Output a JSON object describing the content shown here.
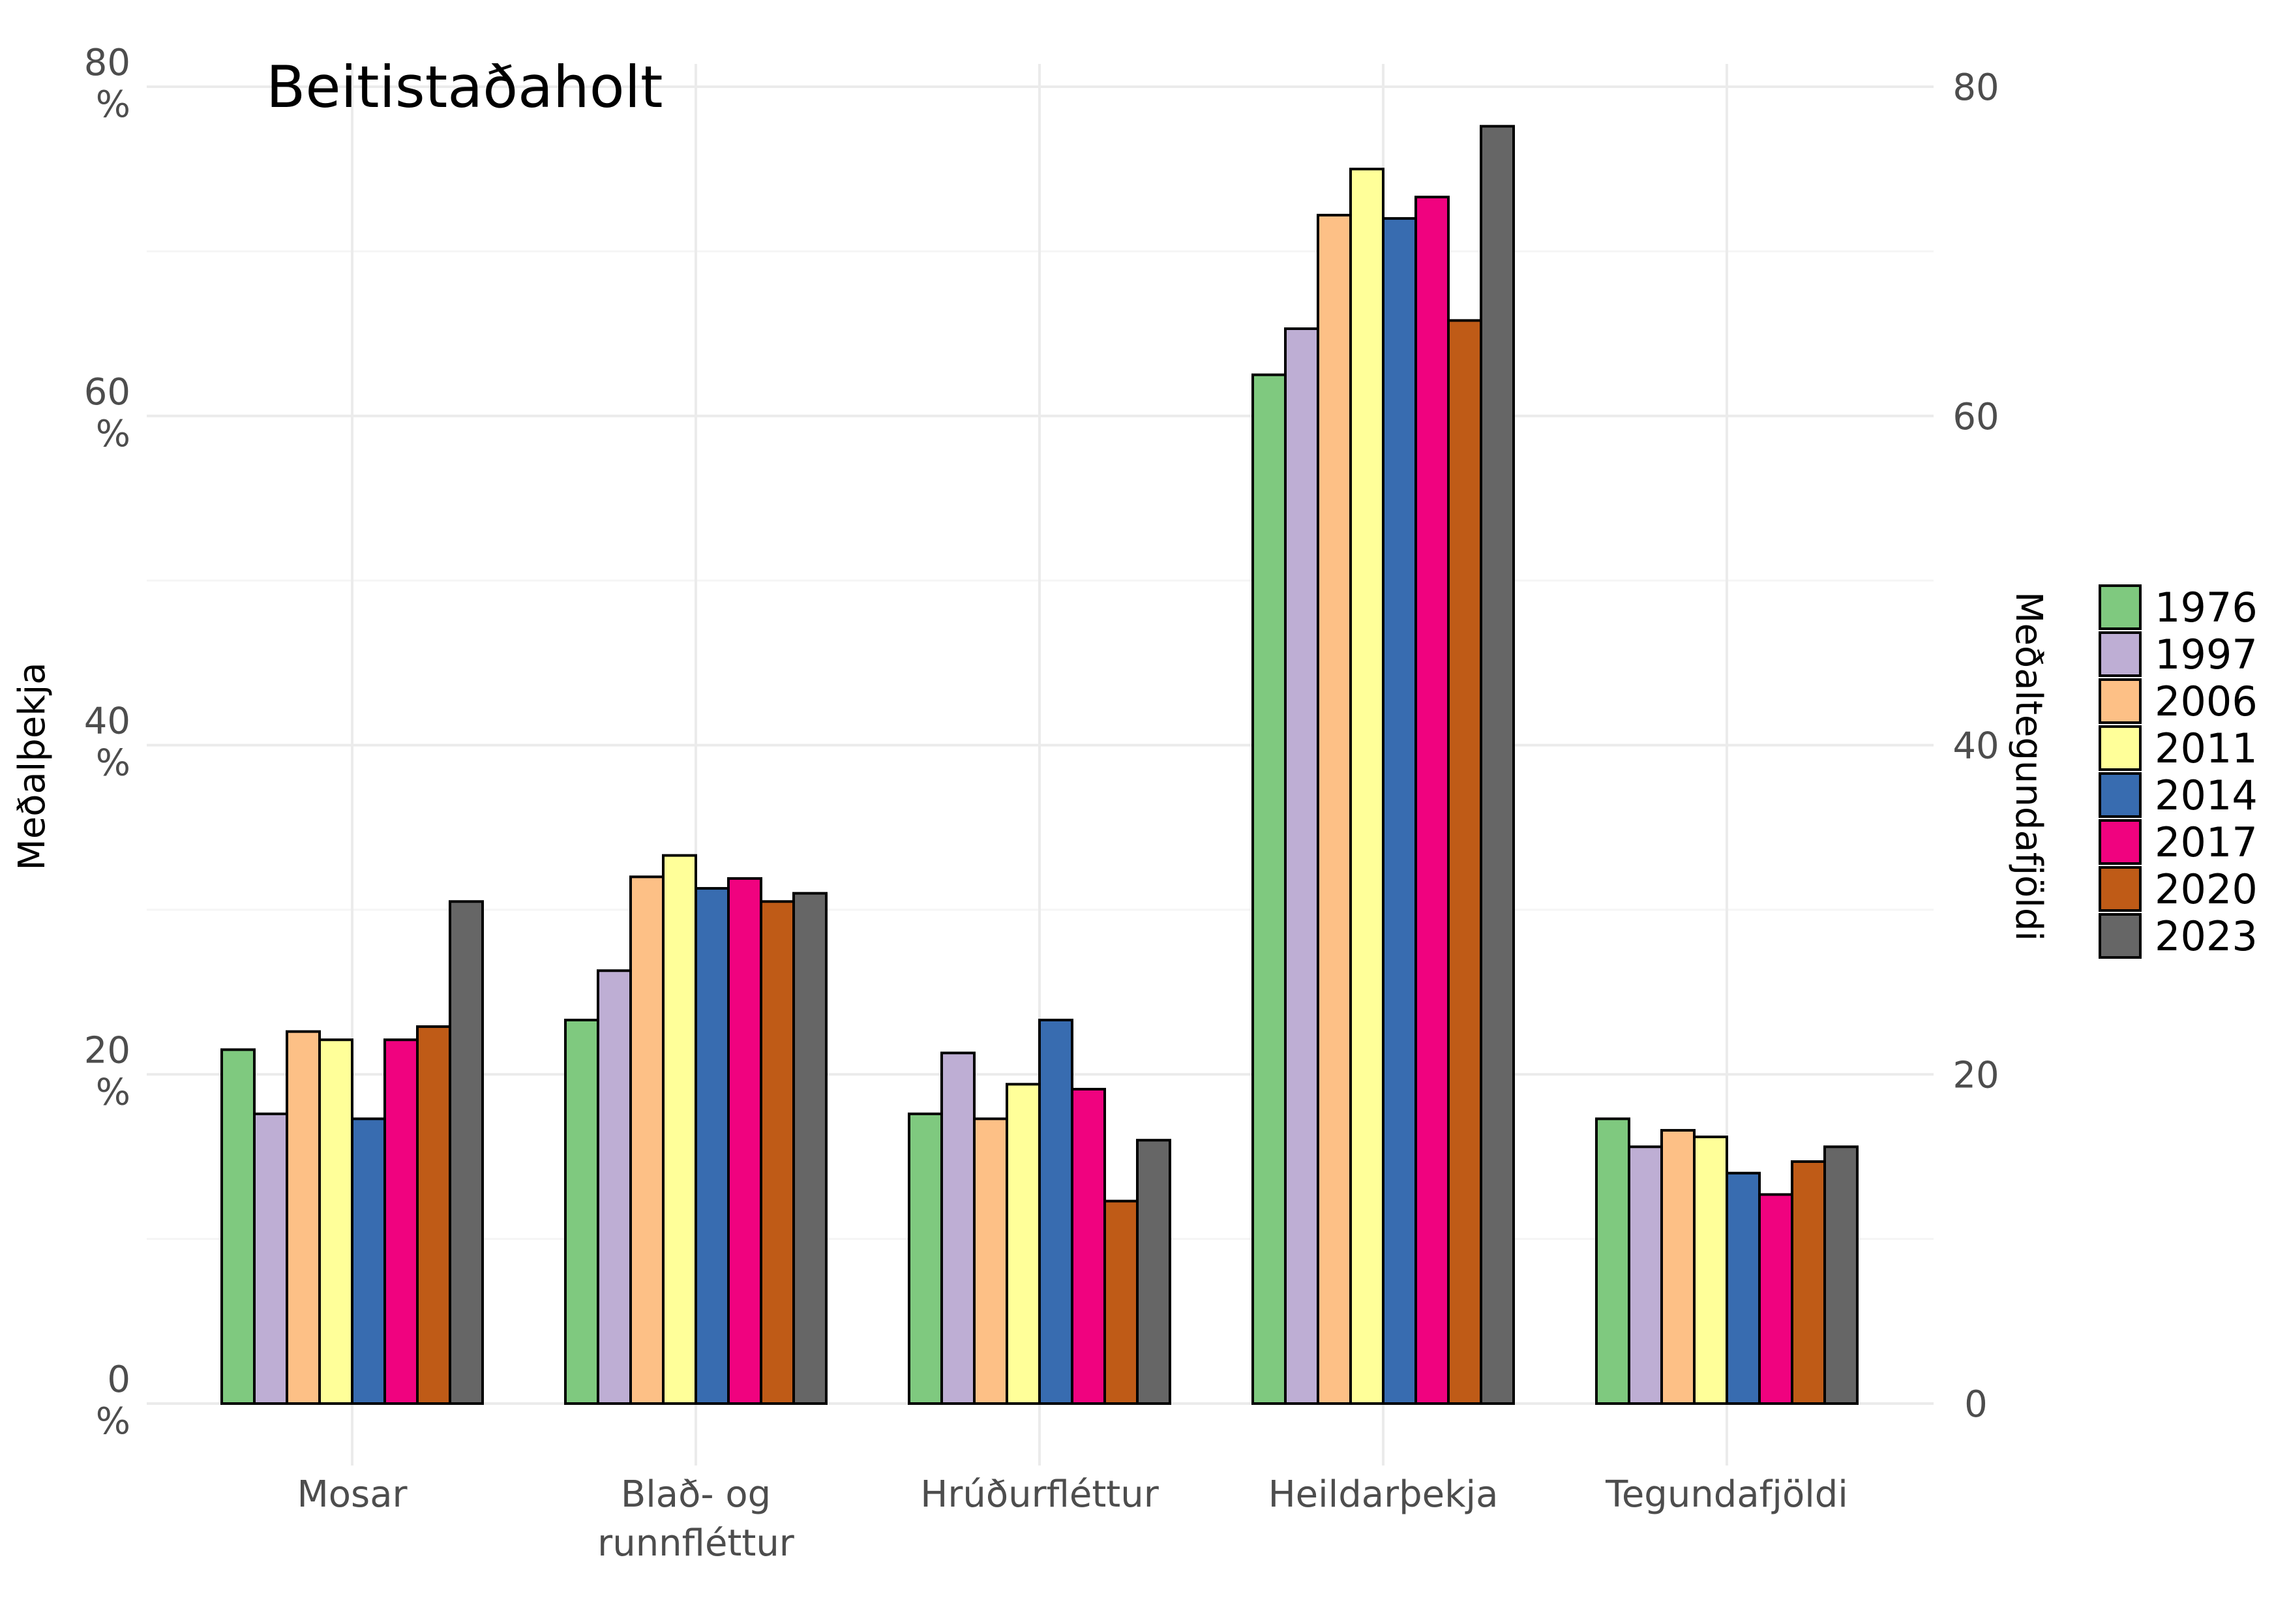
{
  "chart_data": {
    "type": "bar",
    "title": "Beitistaðaholt",
    "ylabel_left": "Meðalþekja",
    "ylabel_right": "Meðaltegundafjöldi",
    "ylim": [
      0,
      80
    ],
    "left_ticks": [
      {
        "value": 0,
        "label": "0\n%"
      },
      {
        "value": 20,
        "label": "20\n%"
      },
      {
        "value": 40,
        "label": "40\n%"
      },
      {
        "value": 60,
        "label": "60\n%"
      },
      {
        "value": 80,
        "label": "80\n%"
      }
    ],
    "right_ticks": [
      {
        "value": 0,
        "label": "0"
      },
      {
        "value": 20,
        "label": "20"
      },
      {
        "value": 40,
        "label": "40"
      },
      {
        "value": 60,
        "label": "60"
      },
      {
        "value": 80,
        "label": "80"
      }
    ],
    "categories": [
      "Mosar",
      "Blað- og\nrunnfléttur",
      "Hrúðurfléttur",
      "Heildarþekja",
      "Tegundafjöldi"
    ],
    "grid": true,
    "legend_position": "right",
    "series": [
      {
        "name": "1976",
        "color": "#7fc97f",
        "values": [
          21.5,
          23.3,
          17.6,
          62.5,
          17.3
        ]
      },
      {
        "name": "1997",
        "color": "#beaed4",
        "values": [
          17.6,
          26.3,
          21.3,
          65.3,
          15.6
        ]
      },
      {
        "name": "2006",
        "color": "#fdc086",
        "values": [
          22.6,
          32.0,
          17.3,
          72.2,
          16.6
        ]
      },
      {
        "name": "2011",
        "color": "#ffff99",
        "values": [
          22.1,
          33.3,
          19.4,
          75.0,
          16.2
        ]
      },
      {
        "name": "2014",
        "color": "#386cb0",
        "values": [
          17.3,
          31.3,
          23.3,
          72.0,
          14.0
        ]
      },
      {
        "name": "2017",
        "color": "#f0027f",
        "values": [
          22.1,
          31.9,
          19.1,
          73.3,
          12.7
        ]
      },
      {
        "name": "2020",
        "color": "#bf5b17",
        "values": [
          22.9,
          30.5,
          12.3,
          65.8,
          14.7
        ]
      },
      {
        "name": "2023",
        "color": "#666666",
        "values": [
          30.5,
          31.0,
          16.0,
          77.6,
          15.6
        ]
      }
    ]
  }
}
